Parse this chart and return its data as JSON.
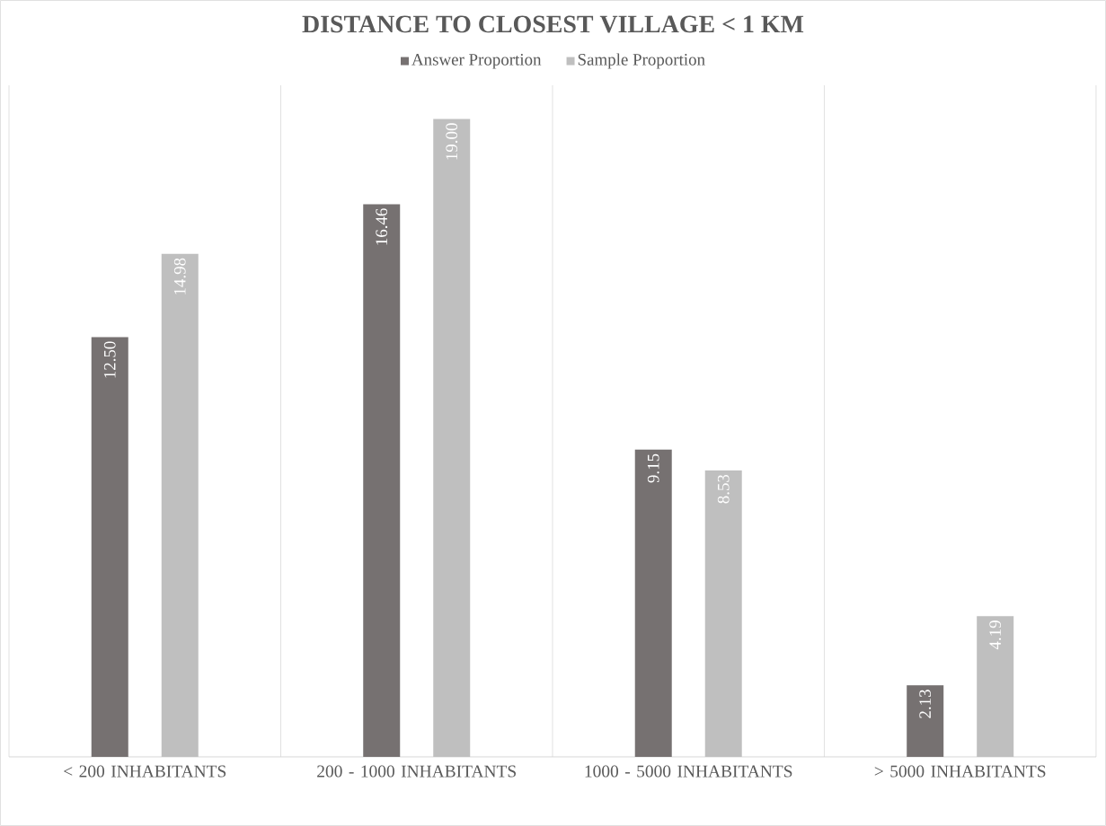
{
  "chart_data": {
    "type": "bar",
    "title": "DISTANCE TO CLOSEST VILLAGE < 1 KM",
    "categories": [
      "< 200 INHABITANTS",
      "200 - 1000 INHABITANTS",
      "1000 - 5000 INHABITANTS",
      "> 5000 INHABITANTS"
    ],
    "series": [
      {
        "name": "Answer Proportion",
        "color": "#767171",
        "values": [
          12.5,
          16.46,
          9.15,
          2.13
        ],
        "value_labels": [
          "12.50",
          "16.46",
          "9.15",
          "2.13"
        ]
      },
      {
        "name": "Sample Proportion",
        "color": "#bfbfbf",
        "values": [
          14.98,
          19.0,
          8.53,
          4.19
        ],
        "value_labels": [
          "14.98",
          "19.00",
          "8.53",
          "4.19"
        ]
      }
    ],
    "ylim": [
      0,
      20
    ],
    "grid": "x",
    "legend": "top"
  }
}
